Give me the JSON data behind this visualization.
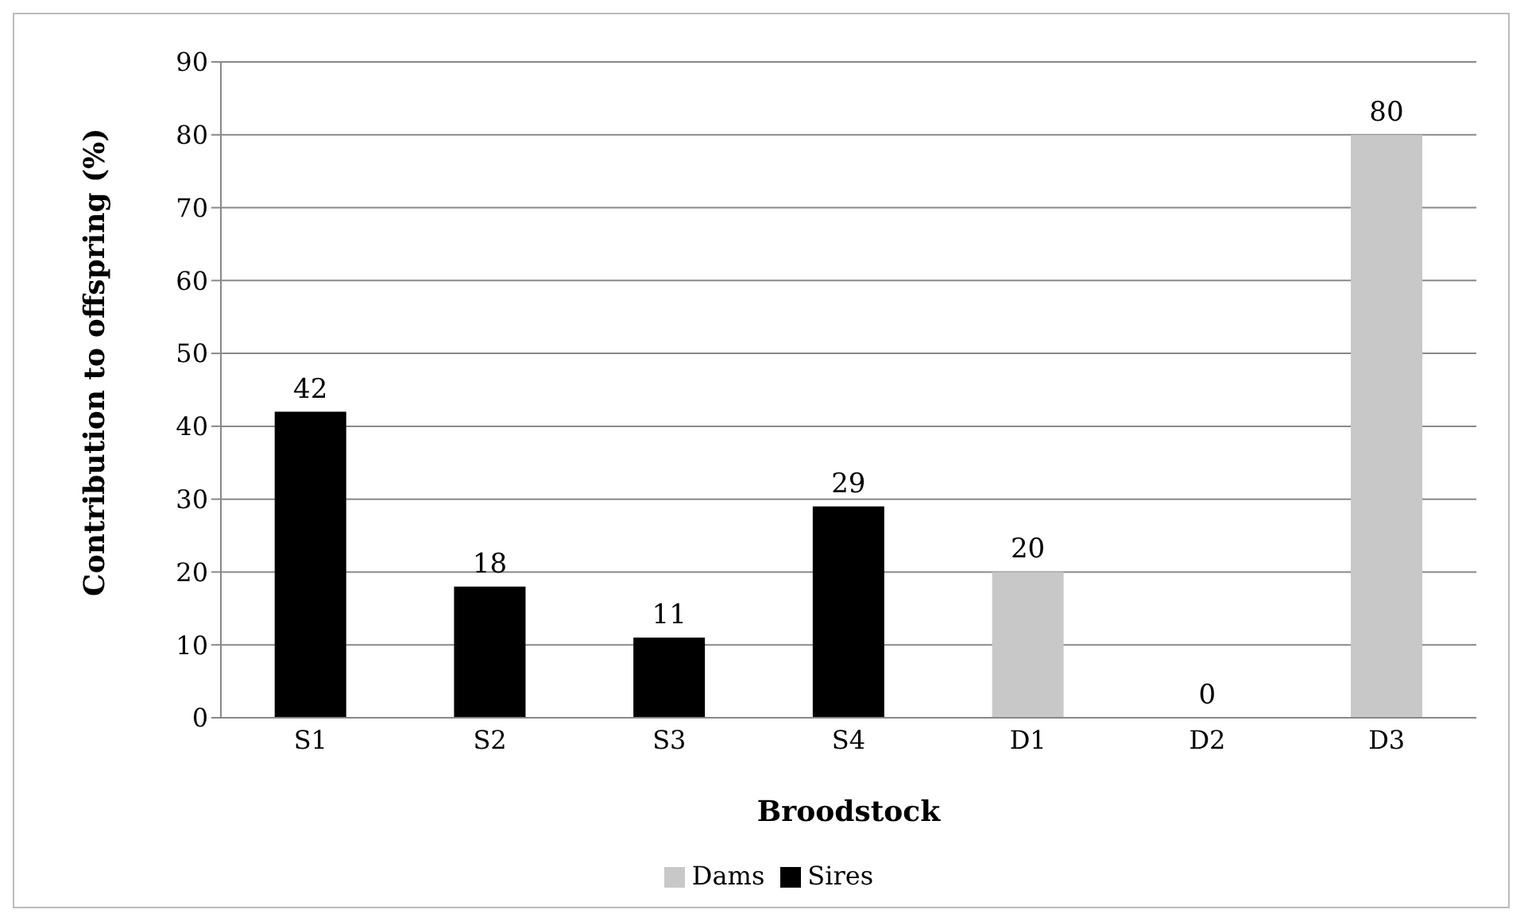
{
  "chart_data": {
    "type": "bar",
    "xlabel": "Broodstock",
    "ylabel": "Contribution to offspring (%)",
    "categories": [
      "S1",
      "S2",
      "S3",
      "S4",
      "D1",
      "D2",
      "D3"
    ],
    "series": [
      {
        "name": "Sires",
        "color": "#000000",
        "values": [
          42,
          18,
          11,
          29,
          null,
          null,
          null
        ]
      },
      {
        "name": "Dams",
        "color": "#c8c8c8",
        "values": [
          null,
          null,
          null,
          null,
          20,
          0,
          80
        ]
      }
    ],
    "stacked": true,
    "ylim": [
      0,
      90
    ],
    "yticks": [
      0,
      10,
      20,
      30,
      40,
      50,
      60,
      70,
      80,
      90
    ],
    "grid": "y",
    "legend": "bottom",
    "data_labels": true
  }
}
